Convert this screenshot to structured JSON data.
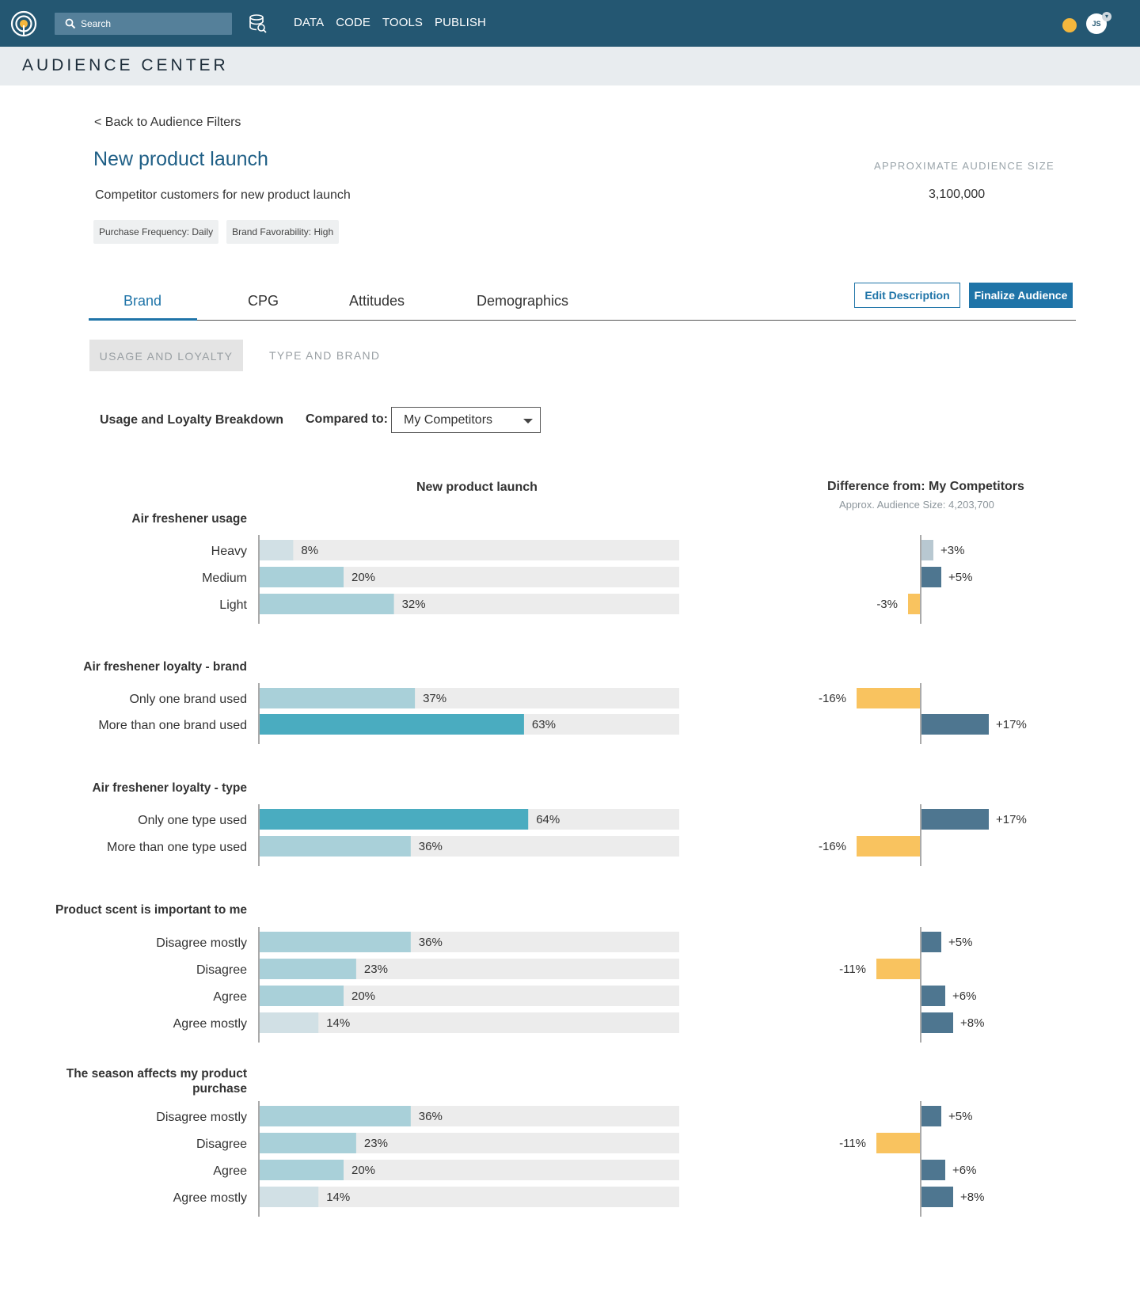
{
  "nav": {
    "search_placeholder": "Search",
    "items": [
      "DATA",
      "CODE",
      "TOOLS",
      "PUBLISH"
    ],
    "avatar_initials": "JS"
  },
  "section_title": "AUDIENCE CENTER",
  "back_link": "< Back to Audience Filters",
  "audience": {
    "title": "New product launch",
    "description": "Competitor customers for new product launch",
    "filters": [
      "Purchase Frequency: Daily",
      "Brand Favorability: High"
    ],
    "size_label": "APPROXIMATE AUDIENCE SIZE",
    "size_value": "3,100,000"
  },
  "tabs": [
    "Brand",
    "CPG",
    "Attitudes",
    "Demographics"
  ],
  "active_tab": "Brand",
  "buttons": {
    "edit": "Edit Description",
    "finalize": "Finalize Audience"
  },
  "subtabs": [
    "USAGE AND LOYALTY",
    "TYPE AND BRAND"
  ],
  "breakdown_label": "Usage and Loyalty Breakdown",
  "compared_to": {
    "label": "Compared to:",
    "value": "My Competitors"
  },
  "colors": {
    "bar_track": "#ececec",
    "bar_light": "#d1e0e5",
    "bar_mid": "#a9d0d9",
    "bar_strong": "#4aacc0",
    "diff_positive": "#4e7690",
    "diff_positive_light": "#b8c8d1",
    "diff_negative": "#f9c35f",
    "axis": "#aaaaaa",
    "brand": "#245772",
    "accent": "#1f74a8"
  },
  "chart_data": [
    {
      "type": "bar",
      "title": "New product launch",
      "ylim": [
        0,
        100
      ],
      "groups": [
        {
          "name": "Air freshener usage",
          "categories": [
            "Heavy",
            "Medium",
            "Light"
          ],
          "values": [
            8,
            20,
            32
          ]
        },
        {
          "name": "Air freshener loyalty - brand",
          "categories": [
            "Only one brand used",
            "More than one brand used"
          ],
          "values": [
            37,
            63
          ]
        },
        {
          "name": "Air freshener loyalty - type",
          "categories": [
            "Only one type used",
            "More than one type used"
          ],
          "values": [
            64,
            36
          ]
        },
        {
          "name": "Product scent is important to me",
          "categories": [
            "Disagree mostly",
            "Disagree",
            "Agree",
            "Agree mostly"
          ],
          "values": [
            36,
            23,
            20,
            14
          ]
        },
        {
          "name": "The season affects my product purchase",
          "categories": [
            "Disagree mostly",
            "Disagree",
            "Agree",
            "Agree mostly"
          ],
          "values": [
            36,
            23,
            20,
            14
          ]
        }
      ]
    },
    {
      "type": "bar",
      "title": "Difference from: My Competitors",
      "subtitle": "Approx. Audience Size: 4,203,700",
      "groups": [
        {
          "name": "Air freshener usage",
          "values": [
            3,
            5,
            -3
          ]
        },
        {
          "name": "Air freshener loyalty - brand",
          "values": [
            -16,
            17
          ]
        },
        {
          "name": "Air freshener loyalty - type",
          "values": [
            17,
            -16
          ]
        },
        {
          "name": "Product scent is important to me",
          "values": [
            5,
            -11,
            6,
            8
          ]
        },
        {
          "name": "The season affects my product purchase",
          "values": [
            5,
            -11,
            6,
            8
          ]
        }
      ]
    }
  ]
}
